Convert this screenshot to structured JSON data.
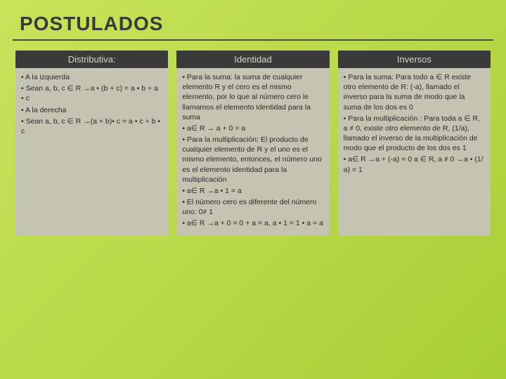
{
  "title": "POSTULADOS",
  "colors": {
    "bg_start": "#c8e45a",
    "bg_end": "#a8ce36",
    "header_bg": "#3a3a3a",
    "header_text": "#d6d6c8",
    "body_bg": "#c4c4b2",
    "title_color": "#3a3a3a",
    "rule_color": "#4a4a4a"
  },
  "columns": [
    {
      "header": "Distributiva:",
      "items": [
        "• A la izquierda",
        "• Sean a, b, c ∈ R →a • (b + c) = a • b + a • c",
        "• A la derecha",
        "• Sean a, b, c ∈ R →(a + b)• c = a • c + b • c"
      ]
    },
    {
      "header": "Identidad",
      "items": [
        "• Para la suma: la suma de cualquier elemento R y el cero es el mismo elemento, por lo que al número cero le llamamos el elemento identidad para la suma",
        "• a∈ R → a + 0 = a",
        "• Para la multiplicación: El producto de cualquier elemento de R y el uno es el mismo elemento, entonces, el número uno es el elemento identidad para la multiplicación",
        "• a∈ R →a • 1 = a",
        "• El número cero es diferente del número uno: 0≠ 1",
        "• a∈ R →a + 0 = 0 + a = a, a • 1 = 1 • a = a"
      ]
    },
    {
      "header": "Inversos",
      "items": [
        "• Para la suma: Para todo a ∈ R existe otro elemento de R: (-a), llamado el inverso para la suma de modo que la suma de los dos es 0",
        "• Para la multiplicación : Para toda a ∈ R, a ≠ 0, existe otro elemento de R, (1/a), llamado el inverso de la multiplicación de modo que el producto de los dos es 1",
        "• a∈ R →a + (-a) = 0    a ∈ R, a ≠ 0 →a • (1/ a) = 1"
      ]
    }
  ]
}
